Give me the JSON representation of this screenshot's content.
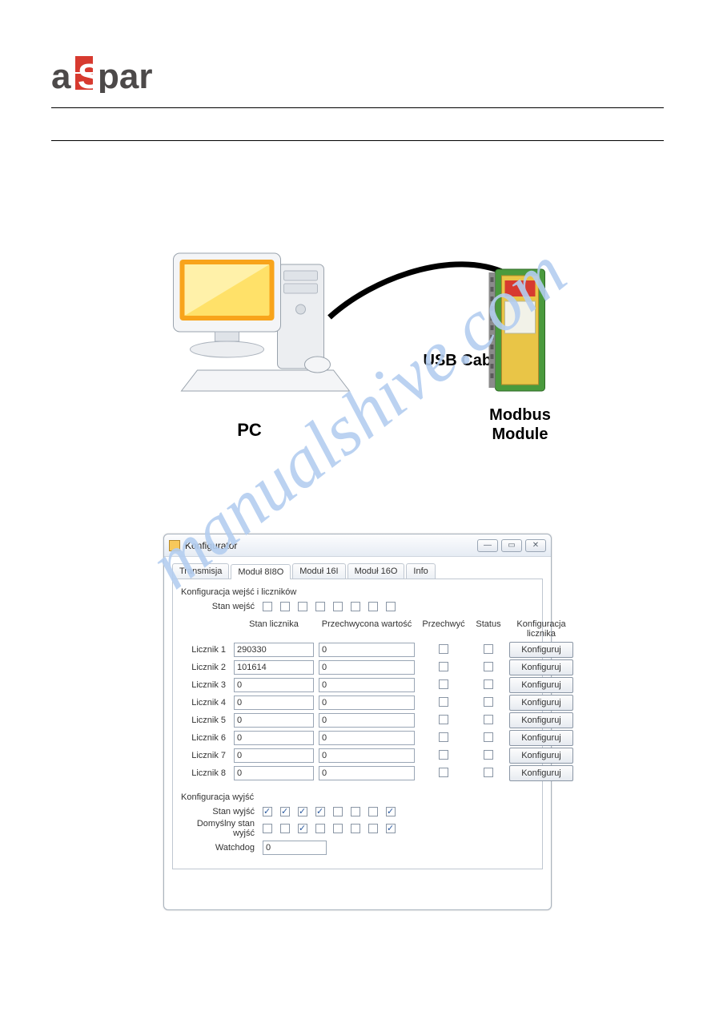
{
  "logo_text_1": "a",
  "logo_text_2": "S",
  "logo_text_3": "par",
  "logo_colors": {
    "red": "#d73a2f",
    "dark": "#4c4949",
    "white": "#ffffff"
  },
  "diagram": {
    "pc_label": "PC",
    "usb_label": "USB Cable",
    "module_label_1": "Modbus",
    "module_label_2": "Module",
    "module_colors": {
      "case": "#4a9a3d",
      "board": "#e9c547",
      "rail": "#8b8b8b"
    },
    "pc_colors": {
      "screen_outer": "#f8a41b",
      "screen_inner": "#ffe169",
      "body": "#e8eaec",
      "shadow": "#bfc3c8"
    },
    "cable_color": "#000000",
    "font_color": "#000000"
  },
  "watermark": "manualshive.com",
  "window": {
    "title": "Konfigurator",
    "tabs": [
      "Transmisja",
      "Moduł 8I8O",
      "Moduł 16I",
      "Moduł 16O",
      "Info"
    ],
    "active_tab": 1,
    "section_inputs_caption": "Konfiguracja wejść i liczników",
    "stan_wejsc_label": "Stan wejść",
    "stan_wejsc_checks": [
      false,
      false,
      false,
      false,
      false,
      false,
      false,
      false
    ],
    "headers": {
      "stan_licznika": "Stan licznika",
      "przechwycona": "Przechwycona wartość",
      "przechwyc": "Przechwyć",
      "status": "Status",
      "konf": "Konfiguracja licznika"
    },
    "liczniki": [
      {
        "label": "Licznik 1",
        "stan": "290330",
        "przech_val": "0",
        "przechwyc": false,
        "status": false,
        "button": "Konfiguruj"
      },
      {
        "label": "Licznik 2",
        "stan": "101614",
        "przech_val": "0",
        "przechwyc": false,
        "status": false,
        "button": "Konfiguruj"
      },
      {
        "label": "Licznik 3",
        "stan": "0",
        "przech_val": "0",
        "przechwyc": false,
        "status": false,
        "button": "Konfiguruj"
      },
      {
        "label": "Licznik 4",
        "stan": "0",
        "przech_val": "0",
        "przechwyc": false,
        "status": false,
        "button": "Konfiguruj"
      },
      {
        "label": "Licznik 5",
        "stan": "0",
        "przech_val": "0",
        "przechwyc": false,
        "status": false,
        "button": "Konfiguruj"
      },
      {
        "label": "Licznik 6",
        "stan": "0",
        "przech_val": "0",
        "przechwyc": false,
        "status": false,
        "button": "Konfiguruj"
      },
      {
        "label": "Licznik 7",
        "stan": "0",
        "przech_val": "0",
        "przechwyc": false,
        "status": false,
        "button": "Konfiguruj"
      },
      {
        "label": "Licznik 8",
        "stan": "0",
        "przech_val": "0",
        "przechwyc": false,
        "status": false,
        "button": "Konfiguruj"
      }
    ],
    "section_outputs_caption": "Konfiguracja wyjść",
    "stan_wyjsc_label": "Stan wyjść",
    "stan_wyjsc_checks": [
      true,
      true,
      true,
      true,
      false,
      false,
      false,
      true
    ],
    "domyslny_label": "Domyślny stan wyjść",
    "domyslny_checks": [
      false,
      false,
      true,
      false,
      false,
      false,
      false,
      true
    ],
    "watchdog_label": "Watchdog",
    "watchdog_value": "0"
  }
}
